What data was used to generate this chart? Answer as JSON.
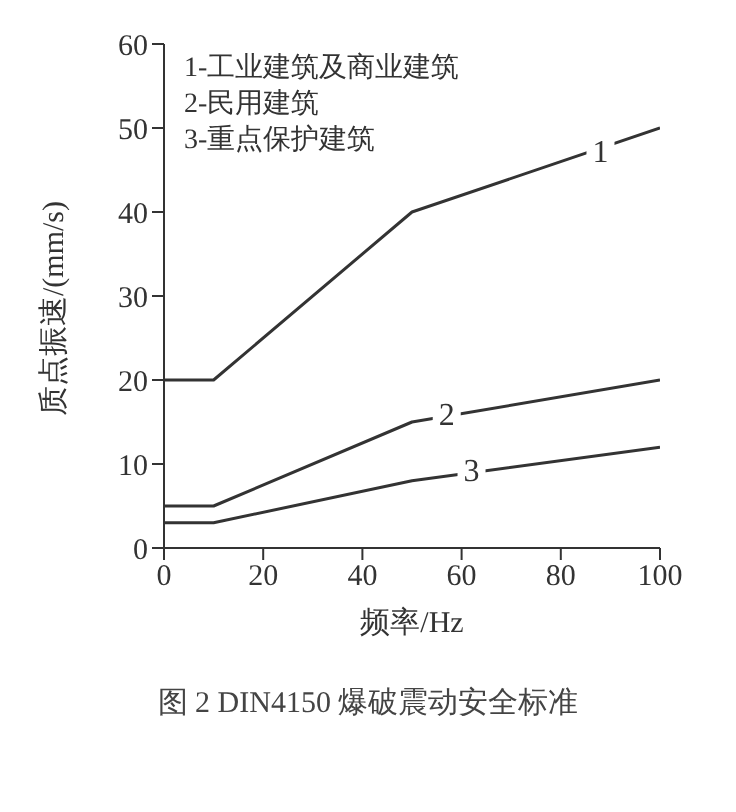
{
  "chart_data": {
    "type": "line",
    "title": "图 2 DIN4150 爆破震动安全标准",
    "xlabel": "频率/Hz",
    "ylabel": "质点振速/(mm/s)",
    "x": [
      0,
      10,
      50,
      100
    ],
    "series": [
      {
        "color": "#333333",
        "values": [
          20,
          20,
          40,
          50
        ]
      },
      {
        "color": "#333333",
        "values": [
          5,
          5,
          15,
          20
        ]
      },
      {
        "color": "#333333",
        "values": [
          3,
          3,
          8,
          12
        ]
      }
    ],
    "xlim": [
      0,
      100
    ],
    "xticks": [
      0,
      20,
      40,
      60,
      80,
      100
    ],
    "ylim": [
      0,
      60
    ],
    "yticks": [
      0,
      10,
      20,
      30,
      40,
      50,
      60
    ],
    "grid": false,
    "marker": "none",
    "line_style": "solid",
    "annotations": [
      "1-工业建筑及商业建筑",
      "2-民用建筑",
      "3-重点保护建筑",
      {
        "text": "1",
        "x": 88,
        "y": 47
      },
      {
        "text": "2",
        "x": 57,
        "y": 15.7
      },
      {
        "text": "3",
        "x": 62,
        "y": 9
      }
    ]
  }
}
